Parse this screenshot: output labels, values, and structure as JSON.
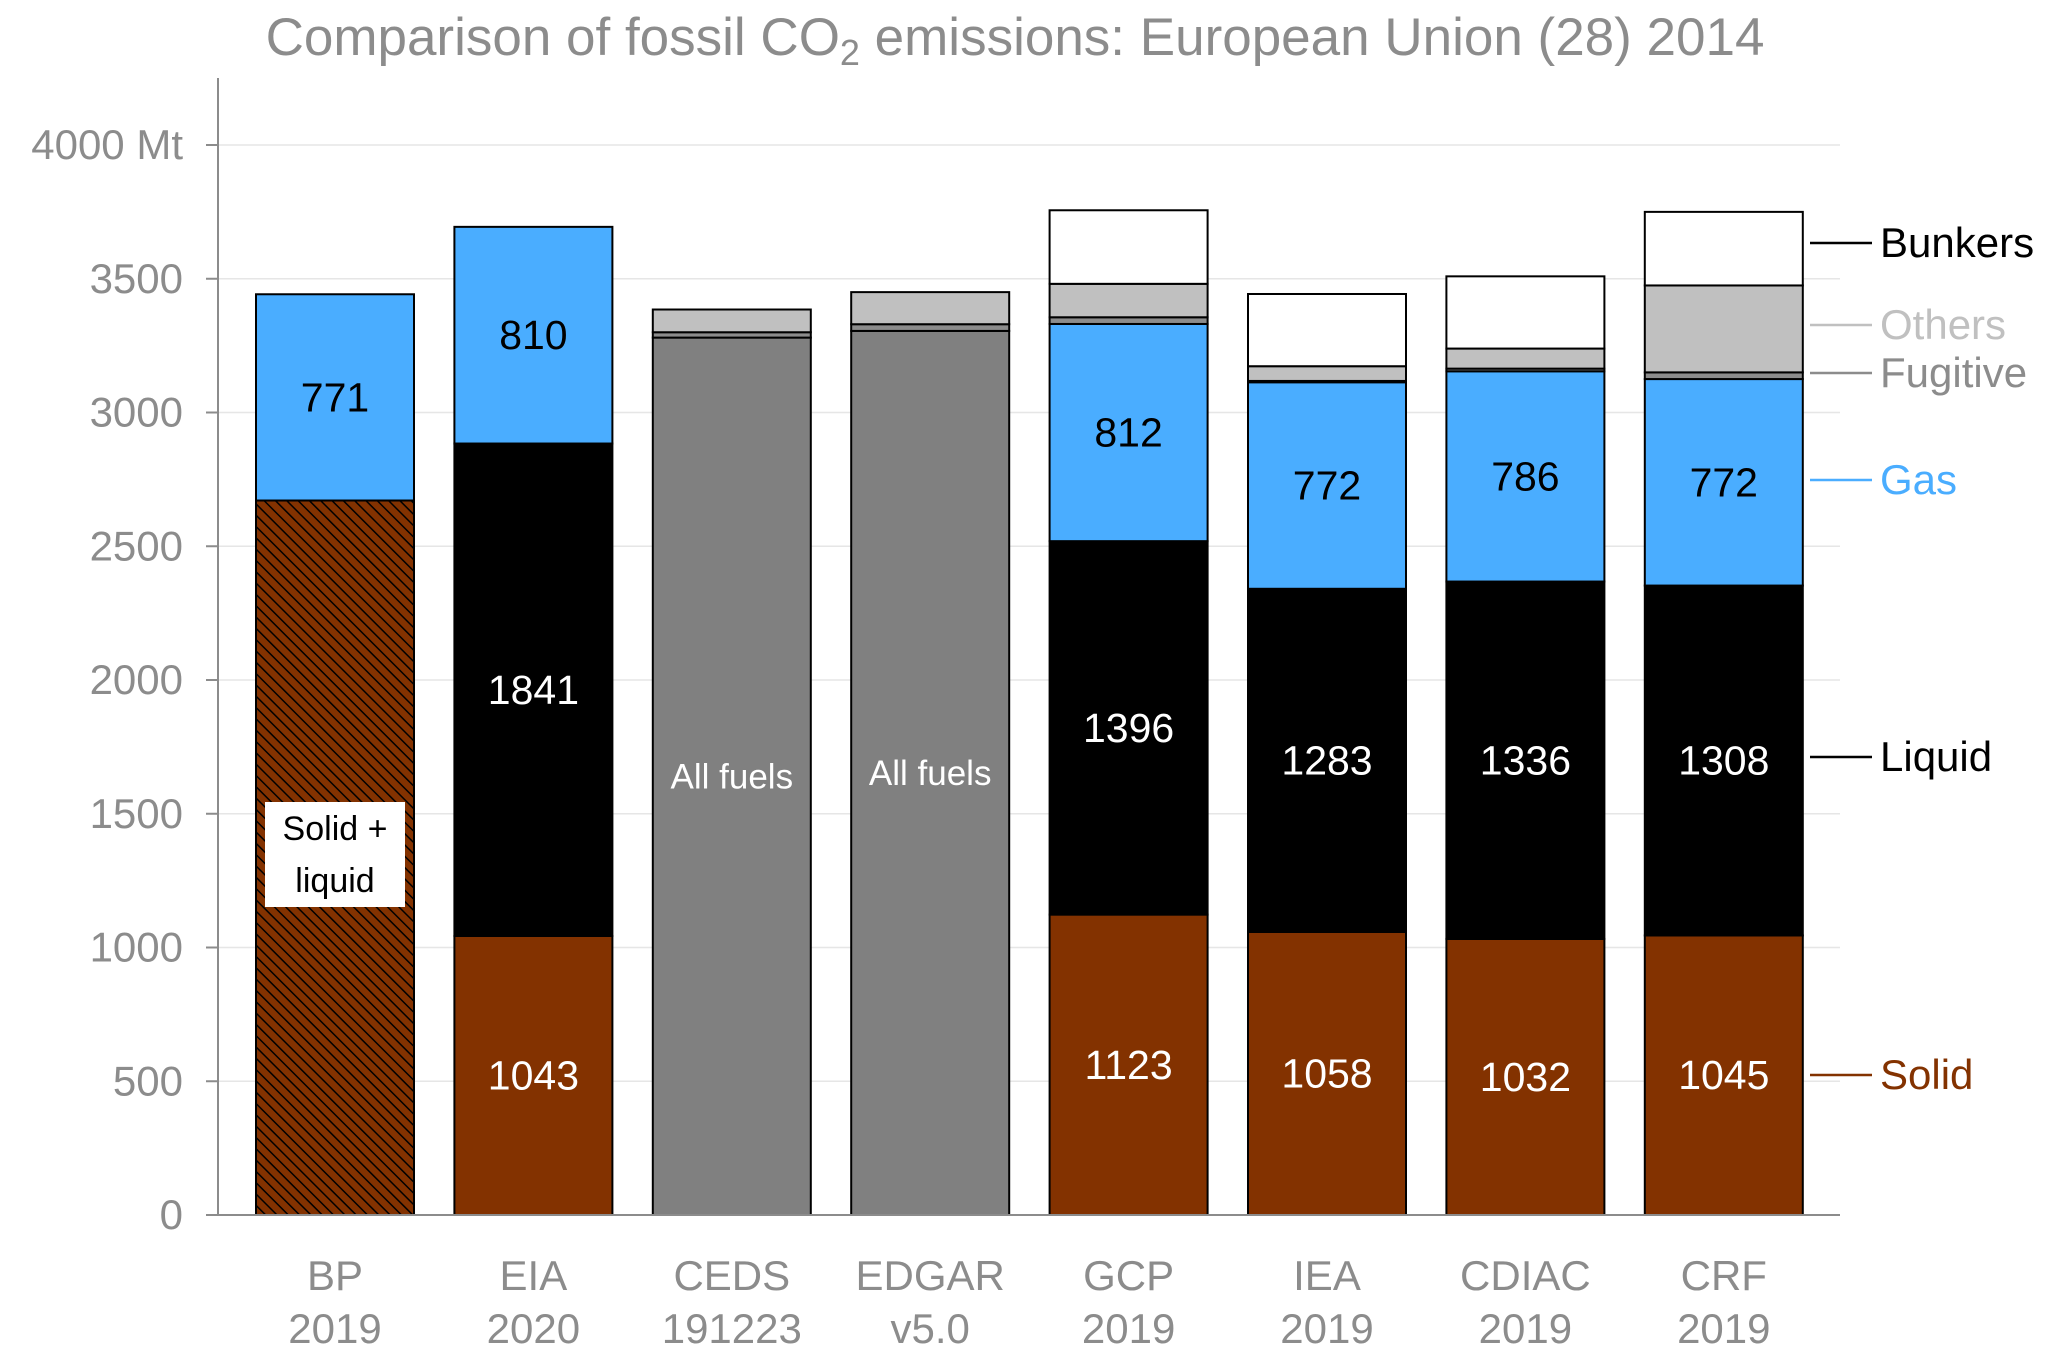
{
  "title": {
    "before": "Comparison of fossil CO",
    "sub": "2",
    "after": " emissions: European Union (28) 2014"
  },
  "colors": {
    "solid": "#833200",
    "liquid": "#000000",
    "gas": "#4aadff",
    "fugitive": "#8c8c8c",
    "others": "#c0c0c0",
    "bunkers": "#ffffff",
    "all_fuels": "#808080",
    "axis_text": "#8c8c8c"
  },
  "chart_data": {
    "type": "bar",
    "stacked": true,
    "unit": "Mt",
    "ylim": [
      0,
      4200
    ],
    "yticks": [
      {
        "value": 0,
        "label": "0"
      },
      {
        "value": 500,
        "label": "500"
      },
      {
        "value": 1000,
        "label": "1000"
      },
      {
        "value": 1500,
        "label": "1500"
      },
      {
        "value": 2000,
        "label": "2000"
      },
      {
        "value": 2500,
        "label": "2500"
      },
      {
        "value": 3000,
        "label": "3000"
      },
      {
        "value": 3500,
        "label": "3500"
      },
      {
        "value": 4000,
        "label": "4000 Mt"
      }
    ],
    "grid": true,
    "categories": [
      {
        "line1": "BP",
        "line2": "2019"
      },
      {
        "line1": "EIA",
        "line2": "2020"
      },
      {
        "line1": "CEDS",
        "line2": "191223"
      },
      {
        "line1": "EDGAR",
        "line2": "v5.0"
      },
      {
        "line1": "GCP",
        "line2": "2019"
      },
      {
        "line1": "IEA",
        "line2": "2019"
      },
      {
        "line1": "CDIAC",
        "line2": "2019"
      },
      {
        "line1": "CRF",
        "line2": "2019"
      }
    ],
    "bars": [
      {
        "segments": [
          {
            "series": "Solid + liquid",
            "value": 2671
          },
          {
            "series": "Gas",
            "value": 771,
            "label": "771"
          }
        ]
      },
      {
        "segments": [
          {
            "series": "Solid",
            "value": 1043,
            "label": "1043"
          },
          {
            "series": "Liquid",
            "value": 1841,
            "label": "1841"
          },
          {
            "series": "Gas",
            "value": 810,
            "label": "810"
          }
        ]
      },
      {
        "segments": [
          {
            "series": "All fuels",
            "value": 3280,
            "label": "All fuels"
          },
          {
            "series": "Fugitive",
            "value": 20
          },
          {
            "series": "Others",
            "value": 85
          }
        ]
      },
      {
        "segments": [
          {
            "series": "All fuels",
            "value": 3305,
            "label": "All fuels"
          },
          {
            "series": "Fugitive",
            "value": 25
          },
          {
            "series": "Others",
            "value": 120
          }
        ]
      },
      {
        "segments": [
          {
            "series": "Solid",
            "value": 1123,
            "label": "1123"
          },
          {
            "series": "Liquid",
            "value": 1396,
            "label": "1396"
          },
          {
            "series": "Gas",
            "value": 812,
            "label": "812"
          },
          {
            "series": "Fugitive",
            "value": 25
          },
          {
            "series": "Others",
            "value": 125
          },
          {
            "series": "Bunkers",
            "value": 275
          }
        ]
      },
      {
        "segments": [
          {
            "series": "Solid",
            "value": 1058,
            "label": "1058"
          },
          {
            "series": "Liquid",
            "value": 1283,
            "label": "1283"
          },
          {
            "series": "Gas",
            "value": 772,
            "label": "772"
          },
          {
            "series": "Fugitive",
            "value": 5
          },
          {
            "series": "Others",
            "value": 55
          },
          {
            "series": "Bunkers",
            "value": 270
          }
        ]
      },
      {
        "segments": [
          {
            "series": "Solid",
            "value": 1032,
            "label": "1032"
          },
          {
            "series": "Liquid",
            "value": 1336,
            "label": "1336"
          },
          {
            "series": "Gas",
            "value": 786,
            "label": "786"
          },
          {
            "series": "Fugitive",
            "value": 10
          },
          {
            "series": "Others",
            "value": 75
          },
          {
            "series": "Bunkers",
            "value": 270
          }
        ]
      },
      {
        "segments": [
          {
            "series": "Solid",
            "value": 1045,
            "label": "1045"
          },
          {
            "series": "Liquid",
            "value": 1308,
            "label": "1308"
          },
          {
            "series": "Gas",
            "value": 772,
            "label": "772"
          },
          {
            "series": "Fugitive",
            "value": 25
          },
          {
            "series": "Others",
            "value": 325
          },
          {
            "series": "Bunkers",
            "value": 275
          }
        ]
      }
    ],
    "annotation": {
      "line1": "Solid +",
      "line2": "liquid"
    },
    "legend": {
      "placement": "right",
      "entries": [
        {
          "label": "Bunkers",
          "color": "#000000"
        },
        {
          "label": "Others",
          "color": "#c0c0c0"
        },
        {
          "label": "Fugitive",
          "color": "#8c8c8c"
        },
        {
          "label": "Gas",
          "color": "#4aadff"
        },
        {
          "label": "Liquid",
          "color": "#000000"
        },
        {
          "label": "Solid",
          "color": "#833200"
        }
      ]
    }
  }
}
